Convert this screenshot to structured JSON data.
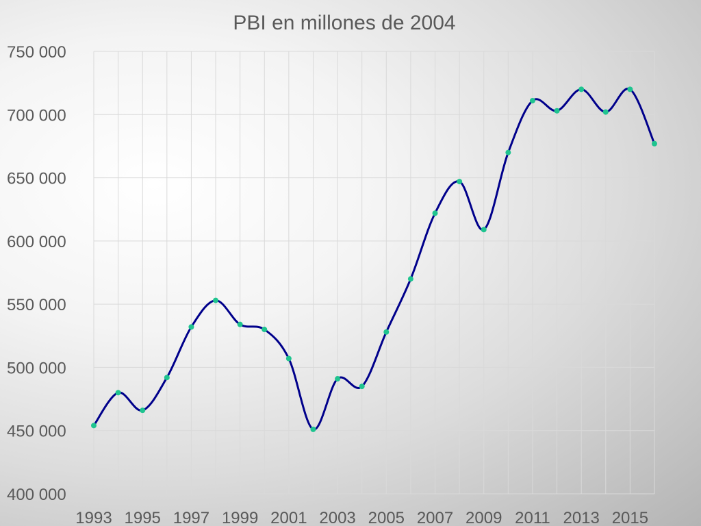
{
  "chart_data": {
    "type": "line",
    "title": "PBI en millones de 2004",
    "xlabel": "",
    "ylabel": "",
    "ylim": [
      400000,
      750000
    ],
    "y_ticks": [
      400000,
      450000,
      500000,
      550000,
      600000,
      650000,
      700000,
      750000
    ],
    "y_tick_labels": [
      "400 000",
      "450 000",
      "500 000",
      "550 000",
      "600 000",
      "650 000",
      "700 000",
      "750 000"
    ],
    "x_tick_labels": [
      "1993",
      "1995",
      "1997",
      "1999",
      "2001",
      "2003",
      "2005",
      "2007",
      "2009",
      "2011",
      "2013",
      "2015"
    ],
    "grid": true,
    "smooth": true,
    "series": [
      {
        "color": "#00008b",
        "marker_color": "#1fc48f",
        "x": [
          1993,
          1994,
          1995,
          1996,
          1997,
          1998,
          1999,
          2000,
          2001,
          2002,
          2003,
          2004,
          2005,
          2006,
          2007,
          2008,
          2009,
          2010,
          2011,
          2012,
          2013,
          2014,
          2015,
          2016
        ],
        "values": [
          454000,
          480000,
          466000,
          492000,
          532000,
          553000,
          534000,
          530000,
          507000,
          451000,
          491000,
          485000,
          528000,
          570000,
          622000,
          647000,
          609000,
          670000,
          711000,
          703000,
          720000,
          702000,
          720000,
          677000
        ]
      }
    ]
  }
}
